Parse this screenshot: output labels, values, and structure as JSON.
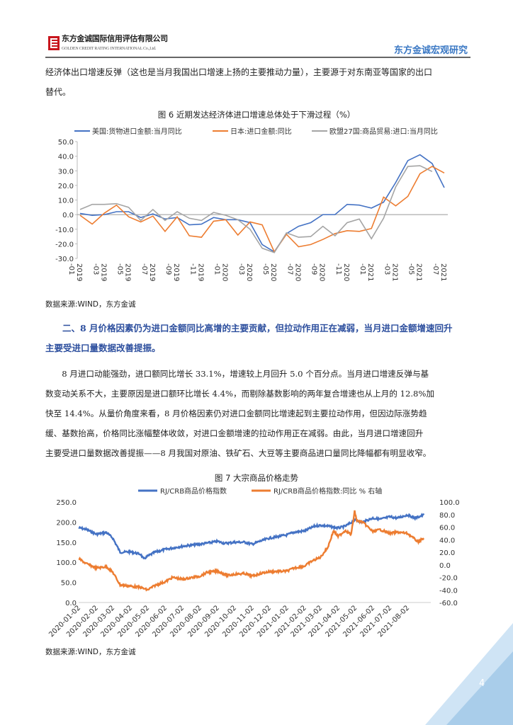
{
  "header": {
    "company_cn": "东方金诚国际信用评估有限公司",
    "company_en": "GOLDEN CREDIT RATING INTERNATIONAL Co.,Ltd.",
    "brand": "东方金诚宏观研究"
  },
  "intro": {
    "lines": [
      "经济体出口增速反弹（这也是当月我国出口增速上扬的主要推动力量），主要源于对东南亚等国家的出口",
      "替代。"
    ]
  },
  "figure6": {
    "title": "图 6  近期发达经济体进口增速总体处于下滑过程（%）",
    "source": "数据来源:WIND，东方金诚"
  },
  "section": {
    "heading_lines": [
      "二、8 月价格因素仍为进口金额同比高增的主要贡献，但拉动作用正在减弱，当月进口金额增速回升",
      "主要受进口量数据改善提振。"
    ],
    "paragraph_lines": [
      "　　8 月进口动能强劲，进口额同比增长 33.1%，增速较上月回升 5.0 个百分点。当月进口增速反弹与基",
      "数变动关系不大，主要原因是进口额环比增长 4.4%，而剔除基数影响的两年复合增速也从上月的 12.8%加",
      "快至 14.4%。从量价角度来看，8 月价格因素仍对进口金额同比增速起到主要拉动作用，但因边际涨势趋",
      "缓、基数抬高，价格同比涨幅整体收敛，对进口金额增速的拉动作用正在减弱。由此，当月进口增速回升",
      "主要受进口量数据改善提振——8 月我国对原油、铁矿石、大豆等主要商品进口量同比降幅都有明显收窄。"
    ]
  },
  "figure7": {
    "title": "图 7  大宗商品价格走势",
    "source": "数据来源:WIND，东方金诚"
  },
  "page_number": "4",
  "colors": {
    "blue": "#4472c4",
    "orange": "#ed7d31",
    "gray": "#a5a5a5",
    "brand": "#3a78c4",
    "heading": "#2d4f9e"
  },
  "chart_data": [
    {
      "type": "line",
      "title": "图 6  近期发达经济体进口增速总体处于下滑过程（%）",
      "ylim": [
        -30,
        50
      ],
      "yticks": [
        "50.0",
        "40.0",
        "30.0",
        "20.0",
        "10.0",
        "0.0",
        "-10.0",
        "-20.0",
        "-30.0"
      ],
      "x": [
        "2019-01",
        "2019-02",
        "2019-03",
        "2019-04",
        "2019-05",
        "2019-06",
        "2019-07",
        "2019-08",
        "2019-09",
        "2019-10",
        "2019-11",
        "2019-12",
        "2020-01",
        "2020-02",
        "2020-03",
        "2020-04",
        "2020-05",
        "2020-06",
        "2020-07",
        "2020-08",
        "2020-09",
        "2020-10",
        "2020-11",
        "2020-12",
        "2021-01",
        "2021-02",
        "2021-03",
        "2021-04",
        "2021-05",
        "2021-06",
        "2021-07"
      ],
      "xtick_labels": [
        [
          "2019",
          "-01"
        ],
        [
          "2019",
          "-03"
        ],
        [
          "2019",
          "-05"
        ],
        [
          "2019",
          "-07"
        ],
        [
          "2019",
          "-09"
        ],
        [
          "2019",
          "-11"
        ],
        [
          "2020",
          "-01"
        ],
        [
          "2020",
          "-03"
        ],
        [
          "2020",
          "-05"
        ],
        [
          "2020",
          "-07"
        ],
        [
          "2020",
          "-09"
        ],
        [
          "2020",
          "-11"
        ],
        [
          "2021",
          "-01"
        ],
        [
          "2021",
          "-03"
        ],
        [
          "2021",
          "-05"
        ],
        [
          "2021",
          "-07"
        ]
      ],
      "legend": "top",
      "series": [
        {
          "name": "美国:货物进口金额:当月同比",
          "color": "#4472c4",
          "values": [
            0.8,
            -0.5,
            0,
            2,
            2,
            -2,
            0.5,
            -3,
            -2,
            -7,
            -6.5,
            -2,
            -3.5,
            -3.5,
            -5.5,
            -20.5,
            -25.5,
            -13,
            -8,
            -5.5,
            0,
            0,
            7,
            6.5,
            4.5,
            8.5,
            22,
            37,
            41,
            35,
            18.5
          ]
        },
        {
          "name": "日本:进口金额:同比",
          "color": "#ed7d31",
          "values": [
            -0.5,
            -6.5,
            1,
            6.5,
            -1.5,
            -5,
            -1,
            -11.5,
            -1.5,
            -14.5,
            -15.5,
            -4.5,
            -3.5,
            -14,
            -5,
            -7,
            -25.5,
            -13.5,
            -22,
            -20.5,
            -17,
            -13,
            -11,
            -11.5,
            -9.5,
            12,
            6,
            12.5,
            28,
            33,
            28.5
          ]
        },
        {
          "name": "欧盟27国:商品贸易:进口:当月同比",
          "color": "#a5a5a5",
          "values": [
            3.5,
            7,
            7,
            7.5,
            5,
            -4,
            3.5,
            -4,
            2,
            -2.5,
            -4,
            1.5,
            -0.5,
            -3.5,
            -10,
            -23,
            -26,
            -12.5,
            -15.5,
            -15,
            -8,
            -14.5,
            -5.5,
            -3,
            -16.5,
            -2.5,
            19,
            33,
            33.5,
            29.5,
            null
          ]
        }
      ]
    },
    {
      "type": "line",
      "title": "图 7  大宗商品价格走势",
      "ylim": [
        0,
        250
      ],
      "y2lim": [
        -60,
        100
      ],
      "yticks": [
        "250.0",
        "200.0",
        "150.0",
        "100.0",
        "50.0",
        "0.0"
      ],
      "y2ticks": [
        "100.0",
        "80.0",
        "60.0",
        "40.0",
        "20.0",
        "0.0",
        "-20.0",
        "-40.0",
        "-60.0"
      ],
      "xtick_labels": [
        "2020-01-02",
        "2020-02-02",
        "2020-03-02",
        "2020-04-02",
        "2020-05-02",
        "2020-06-02",
        "2020-07-02",
        "2020-08-02",
        "2020-09-02",
        "2020-10-02",
        "2020-11-02",
        "2020-12-02",
        "2021-01-02",
        "2021-02-02",
        "2021-03-02",
        "2021-04-02",
        "2021-05-02",
        "2021-06-02",
        "2021-07-02",
        "2021-08-02"
      ],
      "legend": "top",
      "series": [
        {
          "name": "RJ/CRB商品价格指数",
          "axis": "left",
          "color": "#4472c4",
          "points": [
            [
              "2020-01-02",
              186
            ],
            [
              "2020-01-15",
              182
            ],
            [
              "2020-02-02",
              170
            ],
            [
              "2020-02-20",
              174
            ],
            [
              "2020-03-02",
              160
            ],
            [
              "2020-03-15",
              125
            ],
            [
              "2020-04-02",
              126
            ],
            [
              "2020-04-20",
              120
            ],
            [
              "2020-04-25",
              108
            ],
            [
              "2020-05-02",
              115
            ],
            [
              "2020-05-15",
              125
            ],
            [
              "2020-06-02",
              132
            ],
            [
              "2020-07-02",
              140
            ],
            [
              "2020-08-02",
              145
            ],
            [
              "2020-09-02",
              152
            ],
            [
              "2020-09-15",
              147
            ],
            [
              "2020-10-02",
              150
            ],
            [
              "2020-10-20",
              150
            ],
            [
              "2020-11-02",
              145
            ],
            [
              "2020-11-15",
              152
            ],
            [
              "2020-12-02",
              160
            ],
            [
              "2021-01-02",
              168
            ],
            [
              "2021-01-15",
              175
            ],
            [
              "2021-02-02",
              178
            ],
            [
              "2021-02-20",
              190
            ],
            [
              "2021-03-02",
              192
            ],
            [
              "2021-03-15",
              190
            ],
            [
              "2021-04-02",
              185
            ],
            [
              "2021-04-15",
              190
            ],
            [
              "2021-05-02",
              205
            ],
            [
              "2021-05-15",
              200
            ],
            [
              "2021-06-02",
              210
            ],
            [
              "2021-06-15",
              207
            ],
            [
              "2021-07-02",
              213
            ],
            [
              "2021-07-15",
              210
            ],
            [
              "2021-08-02",
              218
            ],
            [
              "2021-08-15",
              210
            ],
            [
              "2021-08-31",
              218
            ]
          ]
        },
        {
          "name": "RJ/CRB商品价格指数:同比 % 右轴",
          "axis": "right",
          "color": "#ed7d31",
          "points": [
            [
              "2020-01-02",
              10
            ],
            [
              "2020-01-15",
              2
            ],
            [
              "2020-02-02",
              -5
            ],
            [
              "2020-02-20",
              -3
            ],
            [
              "2020-03-02",
              -12
            ],
            [
              "2020-03-15",
              -32
            ],
            [
              "2020-04-02",
              -34
            ],
            [
              "2020-04-20",
              -36
            ],
            [
              "2020-05-02",
              -40
            ],
            [
              "2020-05-15",
              -33
            ],
            [
              "2020-06-02",
              -27
            ],
            [
              "2020-06-15",
              -20
            ],
            [
              "2020-07-02",
              -23
            ],
            [
              "2020-08-02",
              -18
            ],
            [
              "2020-08-15",
              -12
            ],
            [
              "2020-09-02",
              -10
            ],
            [
              "2020-09-20",
              -17
            ],
            [
              "2020-10-02",
              -15
            ],
            [
              "2020-10-20",
              -14
            ],
            [
              "2020-11-02",
              -18
            ],
            [
              "2020-11-20",
              -13
            ],
            [
              "2020-12-02",
              -11
            ],
            [
              "2021-01-02",
              -10
            ],
            [
              "2021-01-15",
              -5
            ],
            [
              "2021-02-02",
              -2
            ],
            [
              "2021-02-15",
              6
            ],
            [
              "2021-03-02",
              12
            ],
            [
              "2021-03-15",
              28
            ],
            [
              "2021-03-25",
              54
            ],
            [
              "2021-04-02",
              45
            ],
            [
              "2021-04-15",
              55
            ],
            [
              "2021-04-25",
              48
            ],
            [
              "2021-05-01",
              85
            ],
            [
              "2021-05-05",
              70
            ],
            [
              "2021-05-15",
              68
            ],
            [
              "2021-06-02",
              53
            ],
            [
              "2021-06-15",
              56
            ],
            [
              "2021-07-02",
              50
            ],
            [
              "2021-07-15",
              52
            ],
            [
              "2021-08-02",
              50
            ],
            [
              "2021-08-20",
              37
            ],
            [
              "2021-08-31",
              42
            ]
          ]
        }
      ]
    }
  ]
}
